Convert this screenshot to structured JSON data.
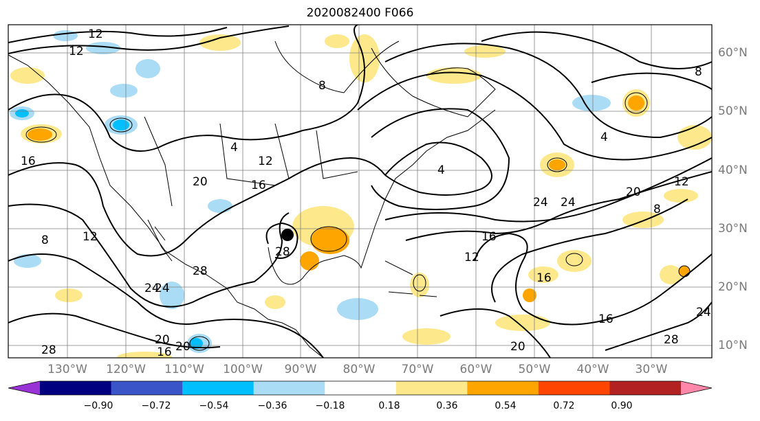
{
  "title": "2020082400 F066",
  "longitude_labels": [
    "130°W",
    "120°W",
    "110°W",
    "100°W",
    "90°W",
    "80°W",
    "70°W",
    "60°W",
    "50°W",
    "40°W",
    "30°W"
  ],
  "latitude_labels": [
    "60°N",
    "50°N",
    "40°N",
    "30°N",
    "20°N",
    "10°N"
  ],
  "colorbar": {
    "ticks": [
      "−0.90",
      "−0.72",
      "−0.54",
      "−0.36",
      "−0.18",
      "0.18",
      "0.36",
      "0.54",
      "0.72",
      "0.90"
    ],
    "colors": [
      "#9a33d6",
      "#000080",
      "#3a55c8",
      "#00bfff",
      "#aadcf5",
      "#ffffff",
      "#fde98c",
      "#ffa500",
      "#ff4500",
      "#b22222",
      "#ff88aa"
    ]
  },
  "contour_labels": [
    "12",
    "12",
    "8",
    "8",
    "4",
    "4",
    "4",
    "12",
    "16",
    "16",
    "20",
    "20",
    "12",
    "12",
    "8",
    "28",
    "28",
    "24",
    "24",
    "24",
    "24",
    "16",
    "16",
    "16",
    "12",
    "8",
    "20",
    "20",
    "16",
    "28",
    "24",
    "28",
    "20"
  ],
  "marker": {
    "type": "black-dot",
    "lon": "93°W",
    "lat": "29°N"
  }
}
